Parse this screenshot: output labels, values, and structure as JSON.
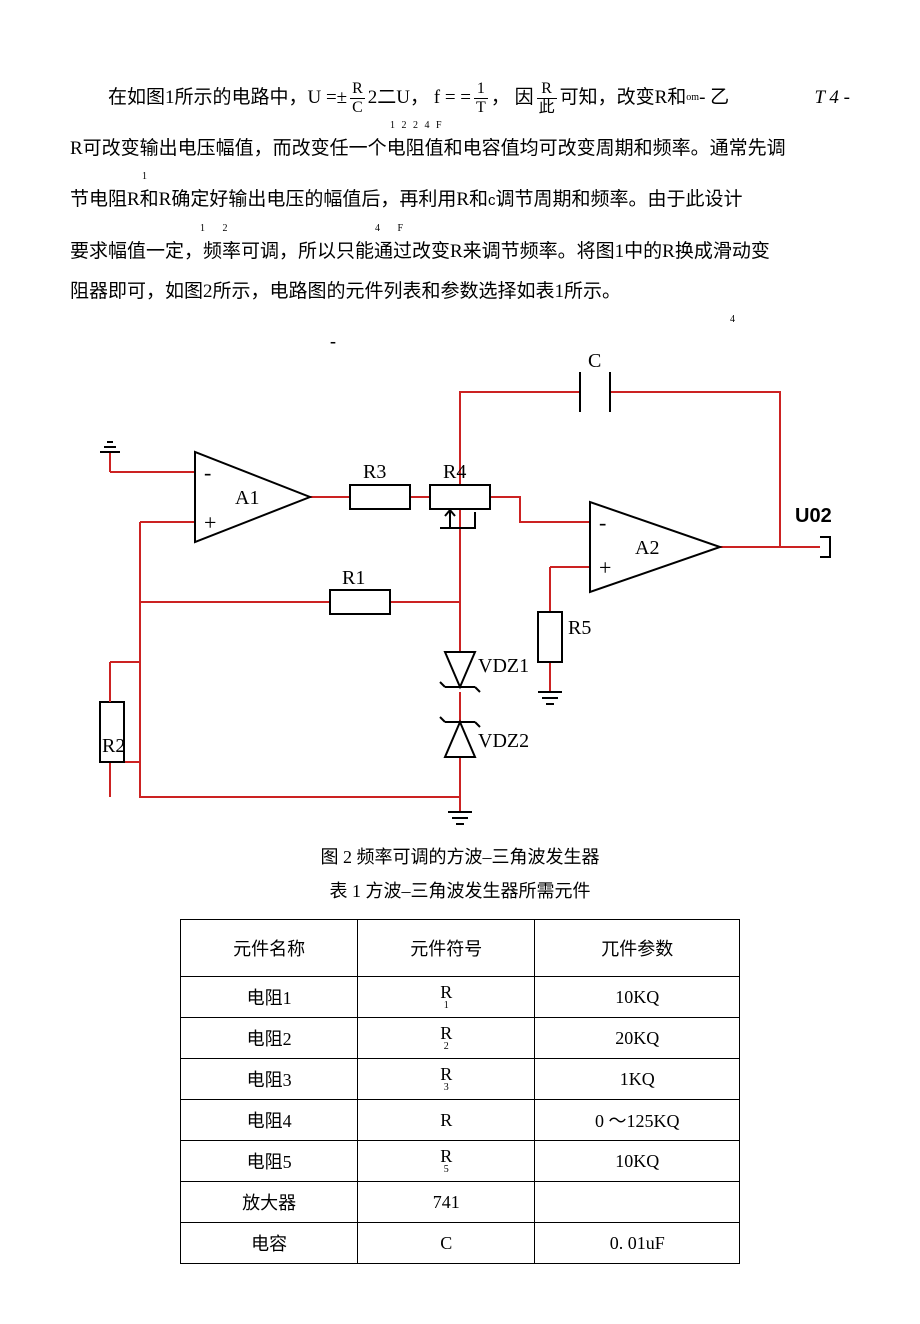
{
  "paragraph": {
    "line1_lead": "在如图1所示的电路中，U =±",
    "frac1_num": "R",
    "frac1_den": "C",
    "line1_mid1": "2二U，  f = =",
    "frac2_num": "1",
    "frac2_den": "T",
    "line1_mid2": "，  因",
    "frac3_num": "R",
    "frac3_den": "此",
    "line1_mid3": "可知，改变R和 ",
    "om": "om",
    "line1_mid4": "- 乙",
    "tail": "T 4 -",
    "sub_row": "1                                                2          2  4 F",
    "line2": "R可改变输出电压幅值，而改变任一个电阻值和电容值均可改变周期和频率。通常先调",
    "sub_row2": "1",
    "line3_a": "节电阻R和R确定好输出电压的幅值后，再利用R和",
    "line3_c": "c",
    "line3_b": "调节周期和频率。由于此设计",
    "sub_row3": "1       2                                                           4       F",
    "line4": "要求幅值一定，频率可调，所以只能通过改变R来调节频率。将图1中的R换成滑动变",
    "line5": "阻器即可，如图2所示，电路图的元件列表和参数选择如表1所示。",
    "sub_row5": "4"
  },
  "figure": {
    "dash": "-",
    "labels": {
      "C": "C",
      "R3": "R3",
      "R4": "R4",
      "A1": "A1",
      "A2": "A2",
      "R1": "R1",
      "R5": "R5",
      "R2": "R2",
      "VDZ1": "VDZ1",
      "VDZ2": "VDZ2",
      "U02": "U02"
    },
    "caption1": "图 2     频率可调的方波–三角波发生器",
    "caption2": "表 1  方波–三角波发生器所需元件",
    "svg": {
      "wire_color": "#cc2222",
      "black": "#000000",
      "stroke_width": 2
    }
  },
  "table": {
    "headers": [
      "元件名称",
      "元件符号",
      "兀件参数"
    ],
    "rows": [
      {
        "name": "电阻1",
        "sym_main": "R",
        "sym_sub": "1",
        "param": "10KQ"
      },
      {
        "name": "电阻2",
        "sym_main": "R",
        "sym_sub": "2",
        "param": "20KQ"
      },
      {
        "name": "电阻3",
        "sym_main": "R",
        "sym_sub": "3",
        "param": "1KQ"
      },
      {
        "name": "电阻4",
        "sym_main": "R",
        "sym_sub": "",
        "param": "0  ～125KQ"
      },
      {
        "name": "电阻5",
        "sym_main": "R",
        "sym_sub": "5",
        "param": "10KQ"
      },
      {
        "name": "放大器",
        "sym_main": "741",
        "sym_sub": "",
        "param": ""
      },
      {
        "name": "电容",
        "sym_main": "C",
        "sym_sub": "",
        "param": "0. 01uF"
      }
    ]
  }
}
